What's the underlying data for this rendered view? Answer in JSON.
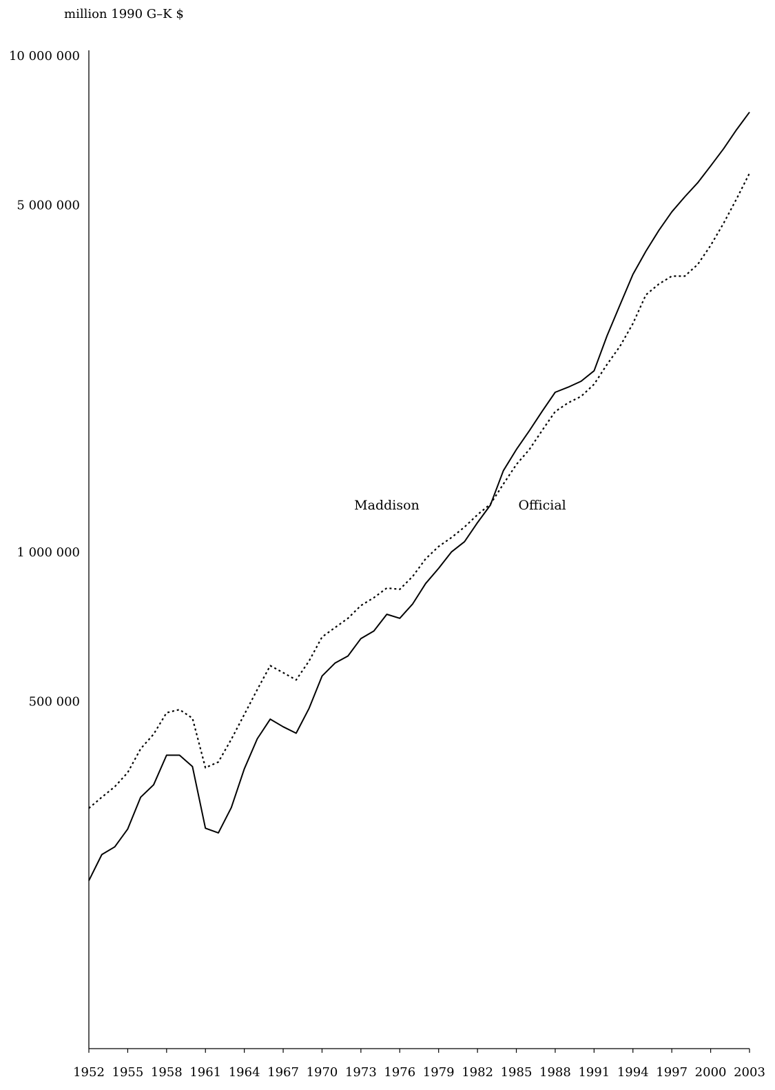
{
  "chart_data": {
    "type": "line",
    "ylabel": "million 1990 G–K $",
    "xlabel": "",
    "y_scale": "log",
    "ylim": [
      100000,
      10000000
    ],
    "xlim": [
      1952,
      2003
    ],
    "yticks": [
      {
        "value": 10000000,
        "label": "10 000 000"
      },
      {
        "value": 5000000,
        "label": "5 000 000"
      },
      {
        "value": 1000000,
        "label": "1 000 000"
      },
      {
        "value": 500000,
        "label": "500 000"
      }
    ],
    "xticks": [
      1952,
      1955,
      1958,
      1961,
      1964,
      1967,
      1970,
      1973,
      1976,
      1979,
      1982,
      1985,
      1988,
      1991,
      1994,
      1997,
      2000,
      2003
    ],
    "x": [
      1952,
      1953,
      1954,
      1955,
      1956,
      1957,
      1958,
      1959,
      1960,
      1961,
      1962,
      1963,
      1964,
      1965,
      1966,
      1967,
      1968,
      1969,
      1970,
      1971,
      1972,
      1973,
      1974,
      1975,
      1976,
      1977,
      1978,
      1979,
      1980,
      1981,
      1982,
      1983,
      1984,
      1985,
      1986,
      1987,
      1988,
      1989,
      1990,
      1991,
      1992,
      1993,
      1994,
      1995,
      1996,
      1997,
      1998,
      1999,
      2000,
      2001,
      2002,
      2003
    ],
    "series": [
      {
        "name": "Maddison",
        "style": "dotted",
        "values": [
          305000,
          321000,
          337000,
          360000,
          402000,
          430000,
          475000,
          482000,
          463000,
          368000,
          378000,
          420000,
          471000,
          529000,
          591000,
          572000,
          553000,
          604000,
          675000,
          705000,
          736000,
          781000,
          810000,
          847000,
          842000,
          894000,
          970000,
          1027000,
          1071000,
          1124000,
          1190000,
          1250000,
          1372000,
          1502000,
          1610000,
          1760000,
          1920000,
          2000000,
          2060000,
          2180000,
          2390000,
          2600000,
          2890000,
          3300000,
          3470000,
          3600000,
          3600000,
          3800000,
          4150000,
          4600000,
          5150000,
          5800000
        ]
      },
      {
        "name": "Official",
        "style": "solid",
        "values": [
          218000,
          246000,
          255000,
          277000,
          321000,
          340000,
          390000,
          390000,
          370000,
          278000,
          272000,
          306000,
          366000,
          421000,
          461000,
          445000,
          432000,
          485000,
          563000,
          598000,
          618000,
          670000,
          694000,
          750000,
          736000,
          787000,
          865000,
          928000,
          1002000,
          1050000,
          1147000,
          1245000,
          1460000,
          1610000,
          1756000,
          1924000,
          2100000,
          2150000,
          2210000,
          2320000,
          2730000,
          3150000,
          3630000,
          4040000,
          4450000,
          4850000,
          5200000,
          5550000,
          6000000,
          6500000,
          7100000,
          7700000
        ]
      }
    ],
    "annotations": [
      {
        "text": "Maddison",
        "x": 1975,
        "y": 1220000
      },
      {
        "text": "Official",
        "x": 1987,
        "y": 1220000
      }
    ],
    "grid": false,
    "legend": "none"
  }
}
